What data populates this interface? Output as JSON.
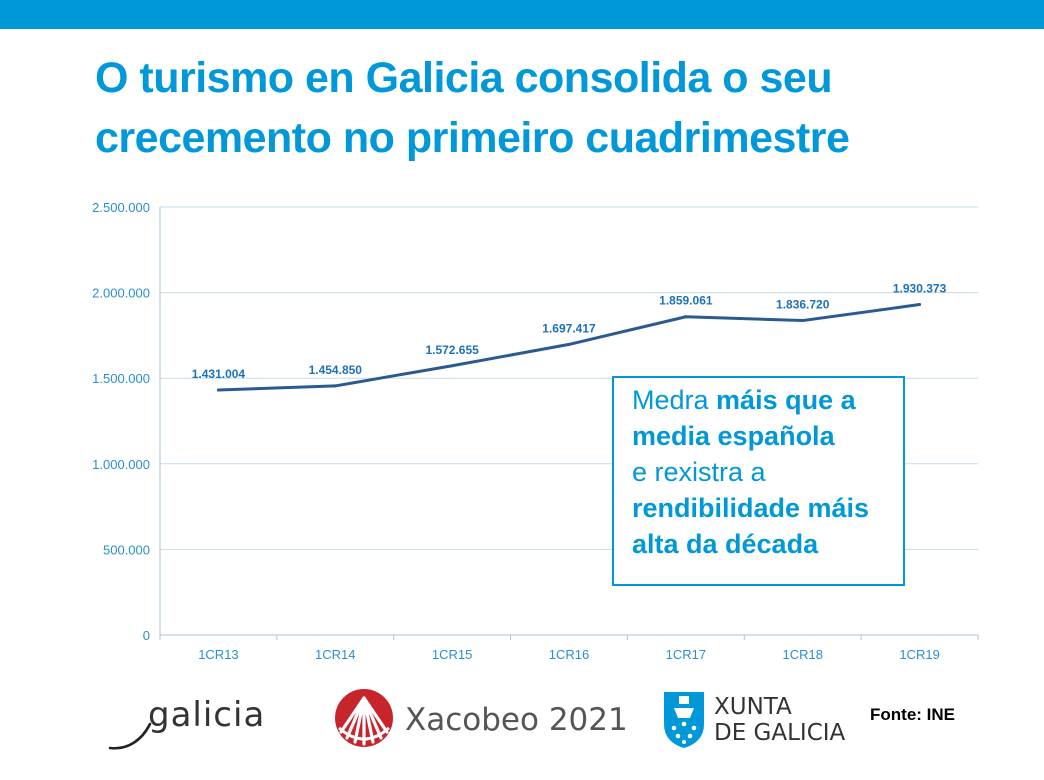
{
  "slide": {
    "title_line1": "O turismo en Galicia consolida o seu",
    "title_line2": "crecemento no primeiro cuadrimestre"
  },
  "callout": {
    "line1_normal": "Medra ",
    "line1_bold": "máis que a",
    "line2_bold": "media española",
    "line3_normal": "e rexistra a",
    "line4_bold": "rendibilidade máis",
    "line5_bold": "alta da década"
  },
  "logos": {
    "galicia": "galicia",
    "xacobeo": "Xacobeo 2021",
    "xunta_line1": "XUNTA",
    "xunta_line2": "DE GALICIA"
  },
  "source": "Fonte: INE",
  "colors": {
    "accent": "#0098d8",
    "line": "#2b5b8e",
    "label": "#1b72b8",
    "grid": "#c5dcea",
    "tick_text": "#2a8fcf"
  },
  "chart_data": {
    "type": "line",
    "categories": [
      "1CR13",
      "1CR14",
      "1CR15",
      "1CR16",
      "1CR17",
      "1CR18",
      "1CR19"
    ],
    "series": [
      {
        "values": [
          1431004,
          1454850,
          1572655,
          1697417,
          1859061,
          1836720,
          1930373
        ],
        "labels": [
          "1.431.004",
          "1.454.850",
          "1.572.655",
          "1.697.417",
          "1.859.061",
          "1.836.720",
          "1.930.373"
        ]
      }
    ],
    "ylim": [
      0,
      2500000
    ],
    "yticks": [
      0,
      500000,
      1000000,
      1500000,
      2000000,
      2500000
    ],
    "ytick_labels": [
      "0",
      "500.000",
      "1.000.000",
      "1.500.000",
      "2.000.000",
      "2.500.000"
    ],
    "grid": true,
    "xlabel": "",
    "ylabel": ""
  }
}
